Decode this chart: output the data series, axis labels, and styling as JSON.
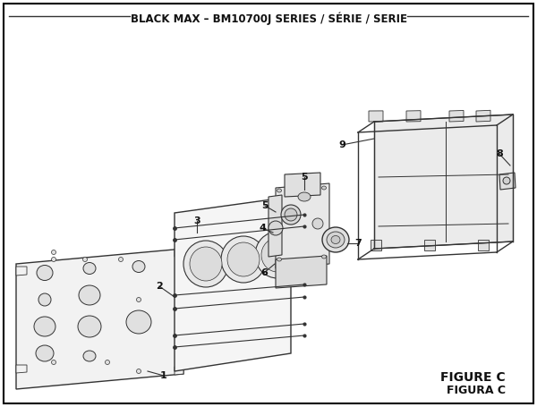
{
  "title": "BLACK MAX – BM10700J SERIES / SÉRIE / SERIE",
  "figure_label": "FIGURE C",
  "figura_label": "FIGURA C",
  "bg_color": "#ffffff",
  "border_color": "#000000",
  "line_color": "#333333",
  "title_fontsize": 8.5,
  "figure_label_fontsize": 10,
  "figura_label_fontsize": 9
}
